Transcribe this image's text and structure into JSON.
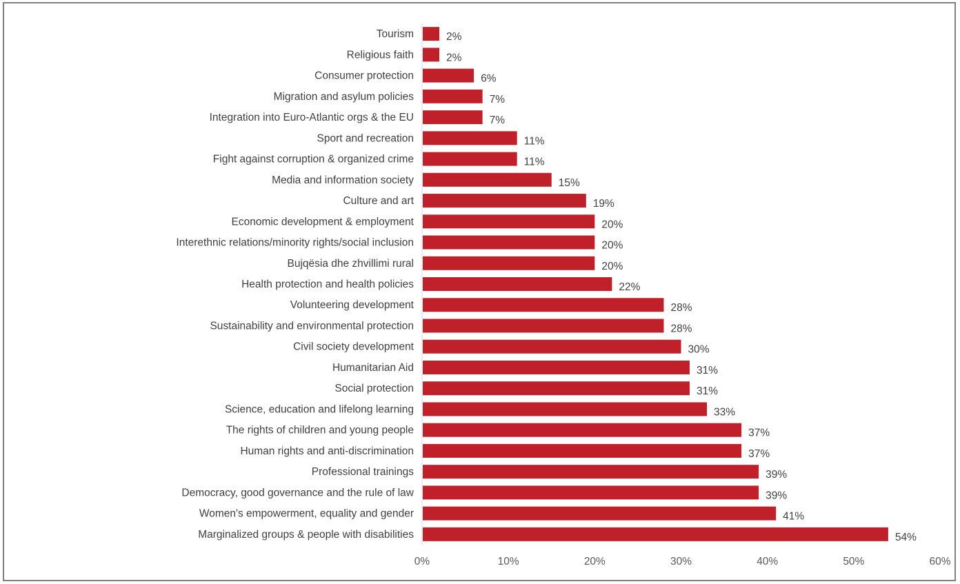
{
  "chart_data": {
    "type": "bar",
    "orientation": "horizontal",
    "title": "",
    "xlabel": "",
    "ylabel": "",
    "xlim": [
      0,
      60
    ],
    "x_ticks": [
      "0%",
      "10%",
      "20%",
      "30%",
      "40%",
      "50%",
      "60%"
    ],
    "grid": false,
    "legend": "none",
    "bar_color": "#c0202a",
    "categories": [
      "Tourism",
      "Religious faith",
      "Consumer protection",
      "Migration and asylum policies",
      "Integration into Euro-Atlantic orgs & the EU",
      "Sport and recreation",
      "Fight against corruption & organized crime",
      "Media and information society",
      "Culture and art",
      "Economic development & employment",
      "Interethnic relations/minority rights/social inclusion",
      "Bujqësia dhe zhvillimi rural",
      "Health protection and health policies",
      "Volunteering development",
      "Sustainability and environmental protection",
      "Civil society development",
      "Humanitarian Aid",
      "Social protection",
      "Science, education and lifelong learning",
      "The rights of children and young people",
      "Human rights and anti-discrimination",
      "Professional trainings",
      "Democracy, good governance and the rule of law",
      "Women's empowerment, equality and gender",
      "Marginalized groups & people with disabilities"
    ],
    "values": [
      2,
      2,
      6,
      7,
      7,
      11,
      11,
      15,
      19,
      20,
      20,
      20,
      22,
      28,
      28,
      30,
      31,
      31,
      33,
      37,
      37,
      39,
      39,
      41,
      54
    ],
    "value_labels": [
      "2%",
      "2%",
      "6%",
      "7%",
      "7%",
      "11%",
      "11%",
      "15%",
      "19%",
      "20%",
      "20%",
      "20%",
      "22%",
      "28%",
      "28%",
      "30%",
      "31%",
      "31%",
      "33%",
      "37%",
      "37%",
      "39%",
      "39%",
      "41%",
      "54%"
    ]
  }
}
